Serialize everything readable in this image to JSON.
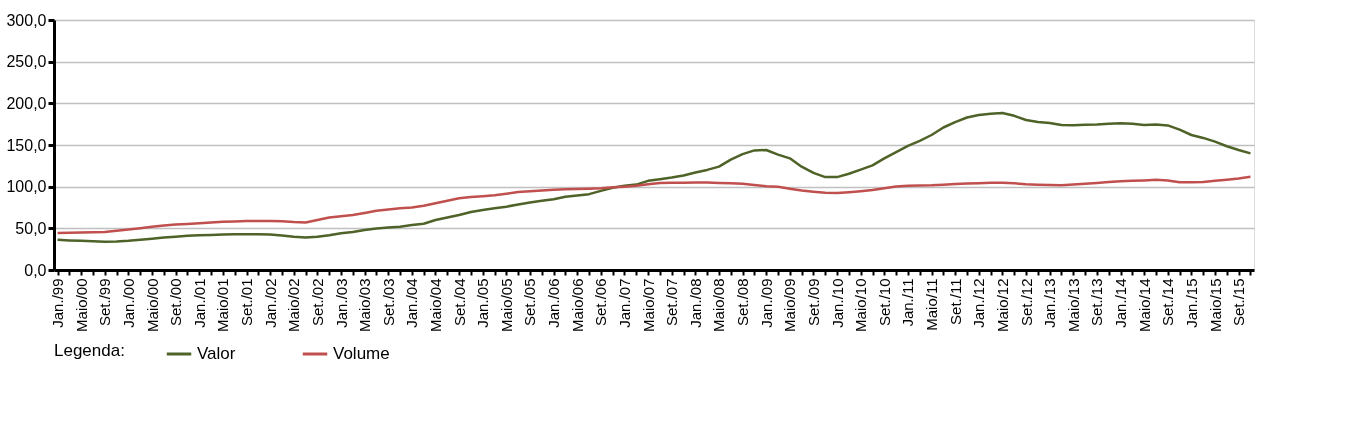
{
  "chart_data": {
    "type": "line",
    "legend_title": "Legenda:",
    "legend": "bottom",
    "grid": "y",
    "line_style": "solid",
    "marker": "none",
    "categories": [
      "Jan./99",
      null,
      "Maio/00",
      null,
      "Set./99",
      null,
      "Jan./00",
      null,
      "Maio/00",
      null,
      "Set./00",
      null,
      "Jan./01",
      null,
      "Maio/01",
      null,
      "Set./01",
      null,
      "Jan./02",
      null,
      "Maio/02",
      null,
      "Set./02",
      null,
      "Jan./03",
      null,
      "Maio/03",
      null,
      "Set./03",
      null,
      "Jan./04",
      null,
      "Maio/04",
      null,
      "Set./04",
      null,
      "Jan./05",
      null,
      "Maio/05",
      null,
      "Set./05",
      null,
      "Jan./06",
      null,
      "Maio/06",
      null,
      "Set./06",
      null,
      "Jan./07",
      null,
      "Maio/07",
      null,
      "Set./07",
      null,
      "Jan./08",
      null,
      "Maio/08",
      null,
      "Set./08",
      null,
      "Jan./09",
      null,
      "Maio/09",
      null,
      "Set./09",
      null,
      "Jan./10",
      null,
      "Maio/10",
      null,
      "Set./10",
      null,
      "Jan./11",
      null,
      "Maio/11",
      null,
      "Set./11",
      null,
      "Jan./12",
      null,
      "Maio/12",
      null,
      "Set./12",
      null,
      "Jan./13",
      null,
      "Maio/13",
      null,
      "Set./13",
      null,
      "Jan./14",
      null,
      "Maio/14",
      null,
      "Set./14",
      null,
      "Jan./15",
      null,
      "Maio/15",
      null,
      "Set./15",
      null
    ],
    "ylim": [
      0,
      300
    ],
    "yticks": [
      {
        "value": 0,
        "label": "0,0"
      },
      {
        "value": 50,
        "label": "50,0"
      },
      {
        "value": 100,
        "label": "100,0"
      },
      {
        "value": 150,
        "label": "150,0"
      },
      {
        "value": 200,
        "label": "200,0"
      },
      {
        "value": 250,
        "label": "250,0"
      },
      {
        "value": 300,
        "label": "300,0"
      }
    ],
    "series": [
      {
        "name": "Valor",
        "color": "#4f6228",
        "values": [
          36.3,
          35.5,
          35,
          34.5,
          34,
          34.2,
          35,
          36.3,
          37.5,
          39,
          40,
          41,
          41.7,
          42,
          42.5,
          42.8,
          42.8,
          42.8,
          42.5,
          41.5,
          40,
          39,
          40,
          41.7,
          44,
          45.5,
          48,
          49.8,
          51,
          52,
          54,
          55.5,
          60,
          63,
          66,
          69.5,
          72,
          74,
          76,
          78.5,
          81,
          83,
          85,
          88,
          89.5,
          91,
          95,
          98.7,
          101,
          102.5,
          107,
          109,
          111,
          113.5,
          117,
          120.1,
          124,
          132.5,
          139,
          143.5,
          144,
          138.5,
          134,
          124,
          116.5,
          111.5,
          111.5,
          115.5,
          120.5,
          125.5,
          134,
          141.5,
          149,
          155,
          162,
          171,
          177.5,
          183,
          186,
          187.5,
          188.5,
          185,
          180,
          177.5,
          176.3,
          174,
          173.8,
          174.2,
          174.6,
          175.5,
          176,
          175.5,
          174,
          174.5,
          173.5,
          168.5,
          162,
          158.5,
          154,
          148.5,
          144,
          140
        ]
      },
      {
        "name": "Volume",
        "color": "#c0504d",
        "values": [
          44.5,
          44.8,
          45,
          45.3,
          45.5,
          47,
          48.5,
          50.2,
          52,
          53.5,
          54.5,
          55.3,
          56,
          57,
          57.8,
          58.3,
          58.8,
          58.8,
          58.8,
          58.5,
          57.5,
          57,
          60,
          63,
          64.5,
          66,
          68.5,
          71,
          72.5,
          74,
          75,
          77,
          80,
          83,
          86,
          87.5,
          88.5,
          89.8,
          91.5,
          93.5,
          94.4,
          95.5,
          96.3,
          96.8,
          97.2,
          97.6,
          98.2,
          99.2,
          100,
          101,
          103,
          104.4,
          104.6,
          104.8,
          105,
          105.1,
          104.5,
          104,
          103.5,
          102,
          100.5,
          99.8,
          97.5,
          95.5,
          94,
          92.8,
          92.3,
          93.3,
          94.5,
          96,
          98,
          100.3,
          101,
          101.4,
          101.6,
          102.3,
          103.2,
          103.7,
          104.2,
          104.6,
          104.8,
          104,
          103,
          102.4,
          101.9,
          101.6,
          102.6,
          103.6,
          104.4,
          105.5,
          106.5,
          107,
          107.5,
          108.3,
          107.4,
          105.2,
          105.2,
          105.6,
          107,
          108.3,
          109.8,
          111.9
        ]
      }
    ]
  }
}
